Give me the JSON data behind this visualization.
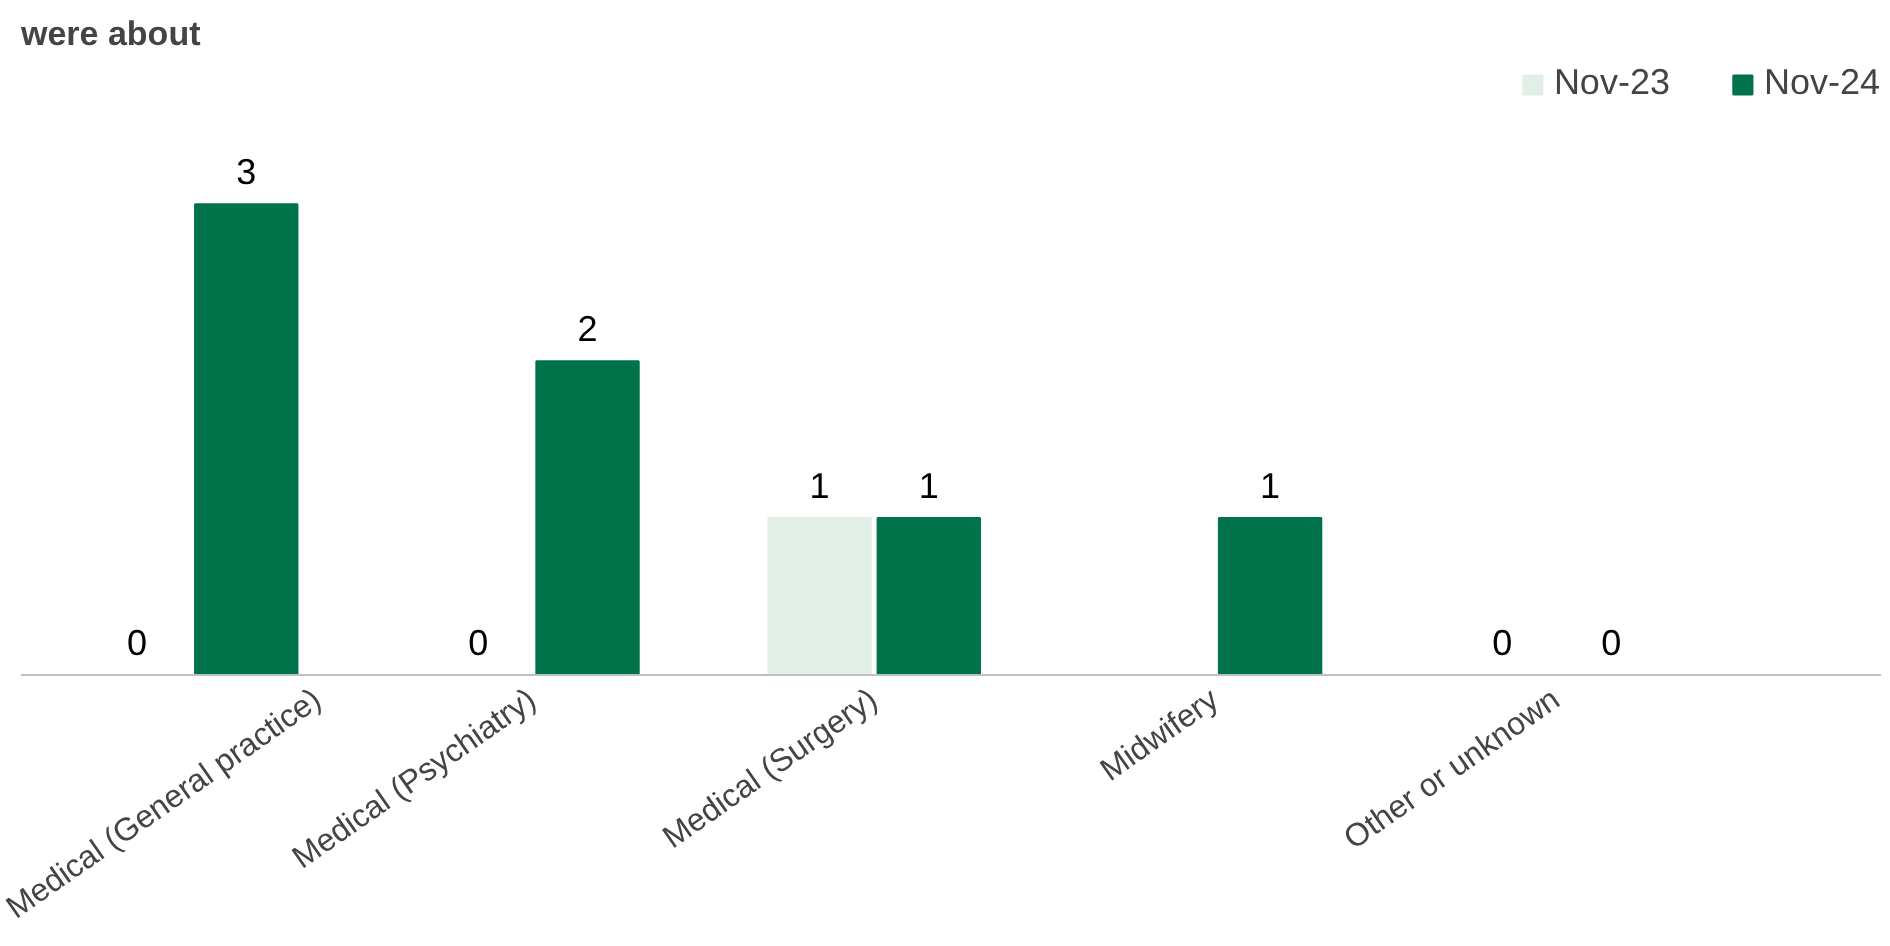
{
  "chart_data": {
    "type": "bar",
    "title": "were about",
    "categories": [
      "Medical (General practice)",
      "Medical (Psychiatry)",
      "Medical (Surgery)",
      "Midwifery",
      "Other or unknown"
    ],
    "series": [
      {
        "name": "Nov-23",
        "color": "#e2efe6",
        "values": [
          0,
          0,
          1,
          null,
          0
        ]
      },
      {
        "name": "Nov-24",
        "color": "#00734a",
        "values": [
          3,
          2,
          1,
          1,
          0
        ]
      }
    ],
    "data_labels": true,
    "legend": "top right",
    "grid": false
  }
}
